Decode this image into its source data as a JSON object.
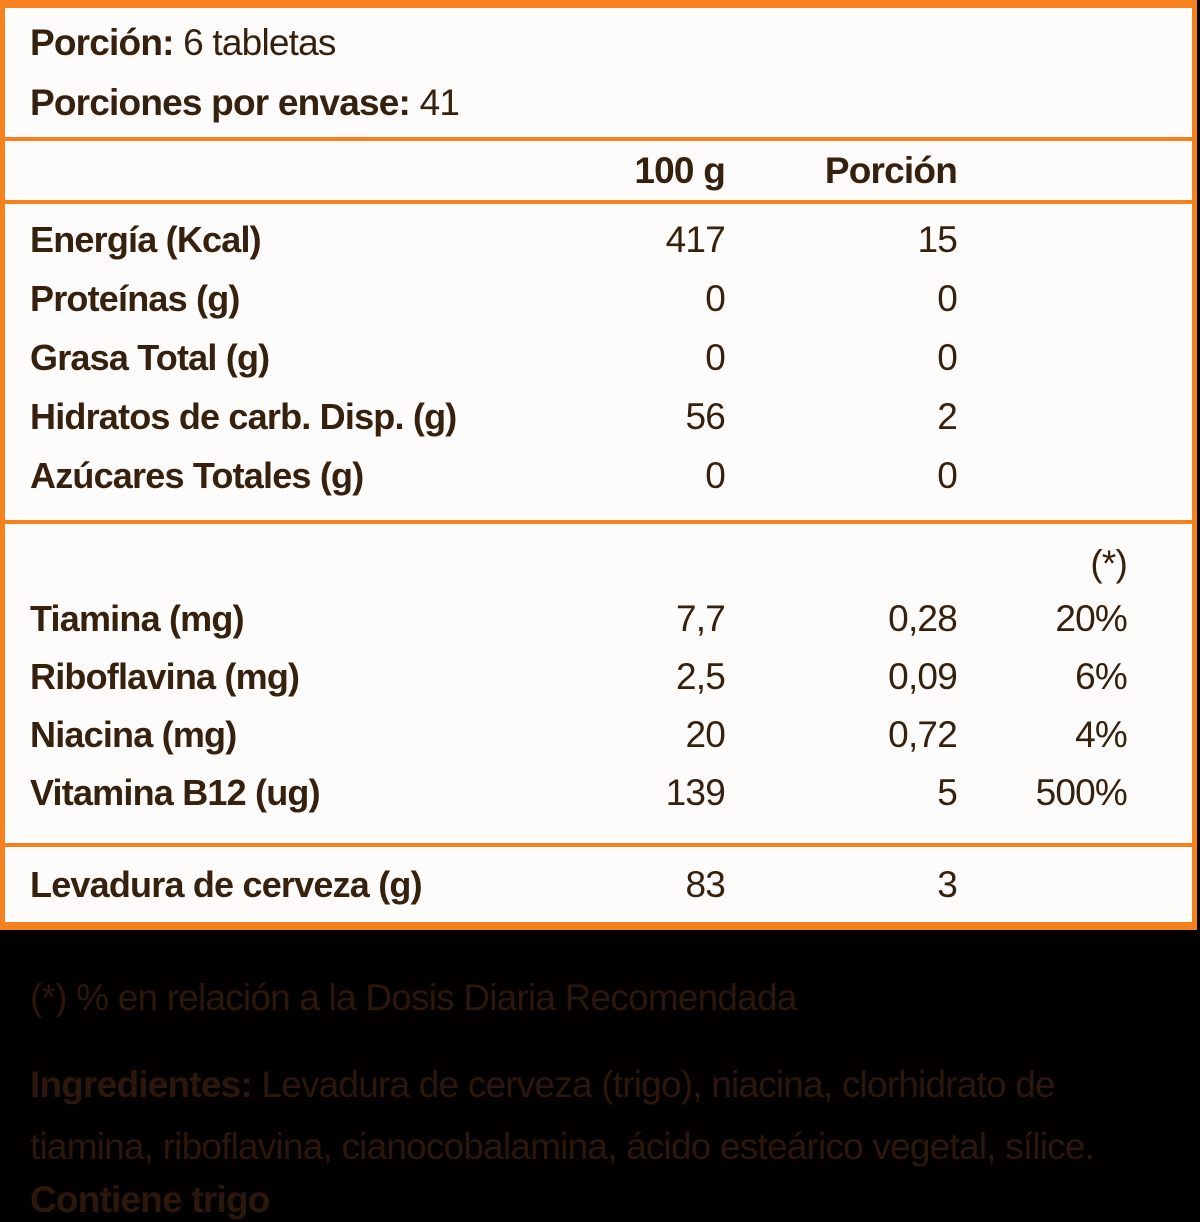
{
  "label": {
    "serving_label": "Porción:",
    "serving_value": "6 tabletas",
    "servings_per_container_label": "Porciones por envase:",
    "servings_per_container_value": "41",
    "columns": {
      "per100": "100 g",
      "portion": "Porción",
      "dv": "(*)"
    },
    "macro_rows": [
      {
        "name": "Energía (Kcal)",
        "per100": "417",
        "portion": "15"
      },
      {
        "name": "Proteínas (g)",
        "per100": "0",
        "portion": "0"
      },
      {
        "name": "Grasa Total (g)",
        "per100": "0",
        "portion": "0"
      },
      {
        "name": "Hidratos de carb. Disp. (g)",
        "per100": "56",
        "portion": "2"
      },
      {
        "name": "Azúcares Totales (g)",
        "per100": "0",
        "portion": "0"
      }
    ],
    "vitamin_rows": [
      {
        "name": "Tiamina (mg)",
        "per100": "7,7",
        "portion": "0,28",
        "dv": "20%"
      },
      {
        "name": "Riboflavina (mg)",
        "per100": "2,5",
        "portion": "0,09",
        "dv": "6%"
      },
      {
        "name": "Niacina (mg)",
        "per100": "20",
        "portion": "0,72",
        "dv": "4%"
      },
      {
        "name": "Vitamina B12 (ug)",
        "per100": "139",
        "portion": "5",
        "dv": "500%"
      }
    ],
    "extra_row": {
      "name": "Levadura de cerveza (g)",
      "per100": "83",
      "portion": "3"
    }
  },
  "footer": {
    "footnote": "(*) % en relación a la Dosis Diaria Recomendada",
    "ingredients_label": "Ingredientes:",
    "ingredients_text": " Levadura de cerveza (trigo), niacina, clorhidrato de tiamina, riboflavina, cianocobalamina, ácido esteárico vegetal, sílice.",
    "allergen": "Contiene trigo"
  },
  "colors": {
    "accent_orange": "#f6821f",
    "panel_background": "#fdfcfa",
    "panel_text": "#36200e",
    "footer_background": "#030100",
    "footer_text": "#2b170b"
  }
}
